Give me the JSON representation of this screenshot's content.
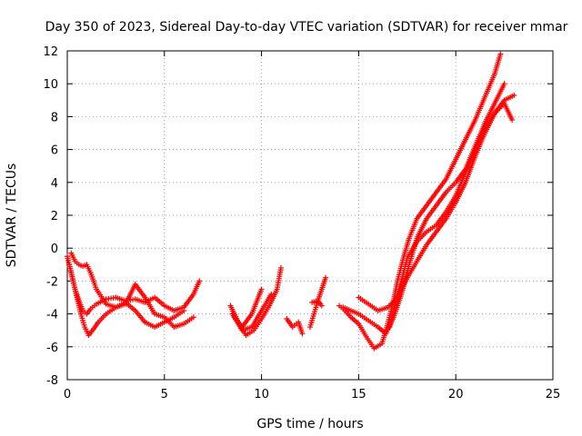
{
  "chart_data": {
    "type": "scatter",
    "title": "Day 350 of 2023, Sidereal Day-to-day VTEC variation (SDTVAR) for receiver mmar",
    "xlabel": "GPS time / hours",
    "ylabel": "SDTVAR / TECUs",
    "xlim": [
      0,
      25
    ],
    "ylim": [
      -8,
      12
    ],
    "x_ticks": [
      0,
      5,
      10,
      15,
      20,
      25
    ],
    "y_ticks": [
      -8,
      -6,
      -4,
      -2,
      0,
      2,
      4,
      6,
      8,
      10,
      12
    ],
    "x_tick_labels": [
      "0",
      "5",
      "10",
      "15",
      "20",
      "25"
    ],
    "y_tick_labels": [
      "-8",
      "-6",
      "-4",
      "-2",
      "0",
      "2",
      "4",
      "6",
      "8",
      "10",
      "12"
    ],
    "grid": true,
    "marker": "+",
    "color": "#ff0000",
    "series": [
      {
        "x": [
          0.0,
          0.2,
          0.4,
          0.6,
          0.8,
          1.0,
          1.2,
          1.5,
          2.0,
          2.5,
          3.0,
          3.5,
          4.0,
          4.5,
          5.0,
          5.5,
          6.0,
          6.5,
          6.8
        ],
        "y": [
          -0.5,
          -1.5,
          -2.5,
          -3.2,
          -3.8,
          -4.0,
          -3.7,
          -3.4,
          -3.1,
          -3.0,
          -3.2,
          -3.1,
          -3.3,
          -3.0,
          -3.5,
          -3.8,
          -3.6,
          -2.8,
          -2.0
        ]
      },
      {
        "x": [
          0.1,
          0.3,
          0.5,
          0.7,
          0.9,
          1.1,
          1.3,
          1.6,
          2.0,
          2.5,
          3.0,
          3.5,
          4.0,
          4.5,
          5.0,
          5.5,
          6.0
        ],
        "y": [
          -1.0,
          -2.0,
          -3.0,
          -4.0,
          -4.8,
          -5.3,
          -5.0,
          -4.5,
          -4.0,
          -3.6,
          -3.3,
          -3.8,
          -4.5,
          -4.8,
          -4.5,
          -4.2,
          -3.8
        ]
      },
      {
        "x": [
          0.2,
          0.4,
          0.6,
          0.8,
          1.0,
          1.2,
          1.5,
          2.0,
          2.5,
          3.0,
          3.5,
          4.0,
          4.5,
          5.0,
          5.5,
          6.0,
          6.5
        ],
        "y": [
          -0.3,
          -0.8,
          -1.0,
          -1.1,
          -1.0,
          -1.5,
          -2.5,
          -3.4,
          -3.6,
          -3.4,
          -2.2,
          -3.0,
          -4.0,
          -4.2,
          -4.8,
          -4.6,
          -4.2
        ]
      },
      {
        "x": [
          8.4,
          8.8,
          9.2,
          9.6,
          10.0,
          10.4,
          10.8,
          11.0
        ],
        "y": [
          -3.5,
          -4.5,
          -5.3,
          -5.0,
          -4.3,
          -3.5,
          -2.5,
          -1.2
        ]
      },
      {
        "x": [
          8.5,
          9.0,
          9.5,
          10.0,
          10.5
        ],
        "y": [
          -4.0,
          -5.0,
          -4.8,
          -3.8,
          -2.8
        ]
      },
      {
        "x": [
          8.6,
          9.0,
          9.5,
          10.0
        ],
        "y": [
          -4.2,
          -4.8,
          -4.0,
          -2.5
        ]
      },
      {
        "x": [
          11.3,
          11.6,
          11.9,
          12.1
        ],
        "y": [
          -4.3,
          -4.8,
          -4.5,
          -5.2
        ]
      },
      {
        "x": [
          12.5,
          12.7,
          12.9,
          13.1,
          13.3
        ],
        "y": [
          -4.8,
          -4.0,
          -3.2,
          -2.5,
          -1.8
        ]
      },
      {
        "x": [
          14.0,
          14.3,
          14.6,
          15.0,
          15.4,
          15.8,
          16.2,
          16.5,
          16.8,
          17.0,
          17.3,
          17.6,
          18.0,
          18.5,
          19.0,
          19.5,
          20.0,
          20.5,
          21.0,
          21.5,
          22.0,
          22.3
        ],
        "y": [
          -3.5,
          -3.8,
          -4.2,
          -4.6,
          -5.4,
          -6.1,
          -5.8,
          -4.6,
          -3.2,
          -2.0,
          -0.6,
          0.6,
          1.8,
          2.6,
          3.4,
          4.2,
          5.4,
          6.6,
          7.8,
          9.2,
          10.6,
          11.8
        ]
      },
      {
        "x": [
          14.2,
          14.6,
          15.0,
          15.5,
          16.0,
          16.4,
          16.8,
          17.2,
          17.6,
          18.0,
          18.5,
          19.0,
          19.5,
          20.0,
          20.5,
          21.0,
          21.5,
          22.0,
          22.5
        ],
        "y": [
          -3.6,
          -3.8,
          -4.0,
          -4.4,
          -4.8,
          -5.2,
          -4.2,
          -2.8,
          -1.0,
          0.6,
          1.8,
          2.6,
          3.4,
          4.0,
          4.8,
          6.2,
          7.6,
          8.8,
          10.0
        ]
      },
      {
        "x": [
          15.0,
          15.5,
          16.0,
          16.5,
          17.0,
          17.5,
          18.0,
          18.5,
          19.0,
          19.5,
          20.0,
          20.5,
          21.0,
          21.5,
          22.0,
          22.5,
          23.0
        ],
        "y": [
          -3.0,
          -3.4,
          -3.8,
          -3.6,
          -3.0,
          -1.8,
          -0.8,
          0.2,
          1.0,
          1.8,
          2.8,
          4.0,
          5.6,
          7.0,
          8.2,
          9.0,
          9.3
        ]
      },
      {
        "x": [
          16.6,
          16.9,
          17.2,
          17.5,
          18.0,
          18.5,
          19.0,
          19.5,
          20.0,
          20.5,
          21.0,
          21.5,
          22.0,
          22.5,
          22.9
        ],
        "y": [
          -4.8,
          -3.2,
          -2.0,
          -0.6,
          0.4,
          1.0,
          1.4,
          2.2,
          3.2,
          4.6,
          6.0,
          7.2,
          8.2,
          8.8,
          7.8
        ]
      },
      {
        "x": [
          12.6,
          12.9,
          13.1
        ],
        "y": [
          -3.3,
          -3.2,
          -3.5
        ]
      }
    ]
  }
}
